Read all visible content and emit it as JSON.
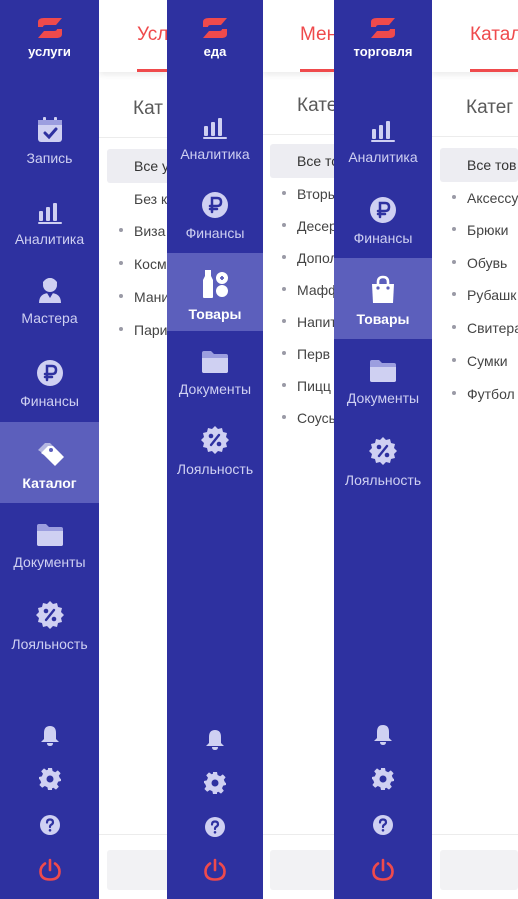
{
  "colors": {
    "sidebar": "#2e31a0",
    "sidebar_active": "#5c5fbc",
    "accent": "#ef4a4c",
    "icon": "#cfd0f2"
  },
  "screens": [
    {
      "brand": "услуги",
      "tab": "Усл",
      "catalog_title": "Кат",
      "all_item": "Все у",
      "items": [
        "Без к",
        "Виза",
        "Косм",
        "Мани",
        "Пари"
      ],
      "nav": [
        {
          "label": "Запись",
          "icon": "calendar-icon",
          "active": false
        },
        {
          "label": "Аналитика",
          "icon": "analytics-icon",
          "active": false
        },
        {
          "label": "Мастера",
          "icon": "master-icon",
          "active": false
        },
        {
          "label": "Финансы",
          "icon": "ruble-icon",
          "active": false
        },
        {
          "label": "Каталог",
          "icon": "tag-icon",
          "active": true
        },
        {
          "label": "Документы",
          "icon": "folder-icon",
          "active": false
        },
        {
          "label": "Лояльность",
          "icon": "discount-icon",
          "active": false
        }
      ]
    },
    {
      "brand": "еда",
      "tab": "Мен",
      "catalog_title": "Кате",
      "all_item": "Все то",
      "items": [
        "Вторы",
        "Десер",
        "Допол",
        "Маффи",
        "Напит",
        "Перв",
        "Пицц",
        "Соусы"
      ],
      "nav": [
        {
          "label": "Аналитика",
          "icon": "analytics-icon",
          "active": false
        },
        {
          "label": "Финансы",
          "icon": "ruble-icon",
          "active": false
        },
        {
          "label": "Товары",
          "icon": "goods-icon",
          "active": true
        },
        {
          "label": "Документы",
          "icon": "folder-icon",
          "active": false
        },
        {
          "label": "Лояльность",
          "icon": "discount-icon",
          "active": false
        }
      ]
    },
    {
      "brand": "торговля",
      "tab": "Катал",
      "catalog_title": "Катег",
      "all_item": "Все тов",
      "items": [
        "Аксессу",
        "Брюки",
        "Обувь",
        "Рубашк",
        "Свитера",
        "Сумки",
        "Футбол"
      ],
      "nav": [
        {
          "label": "Аналитика",
          "icon": "analytics-icon",
          "active": false
        },
        {
          "label": "Финансы",
          "icon": "ruble-icon",
          "active": false
        },
        {
          "label": "Товары",
          "icon": "bag-icon",
          "active": true
        },
        {
          "label": "Документы",
          "icon": "folder-icon",
          "active": false
        },
        {
          "label": "Лояльность",
          "icon": "discount-icon",
          "active": false
        }
      ]
    }
  ],
  "bottom_icons": [
    "bell-icon",
    "gear-icon",
    "help-icon",
    "power-icon"
  ]
}
